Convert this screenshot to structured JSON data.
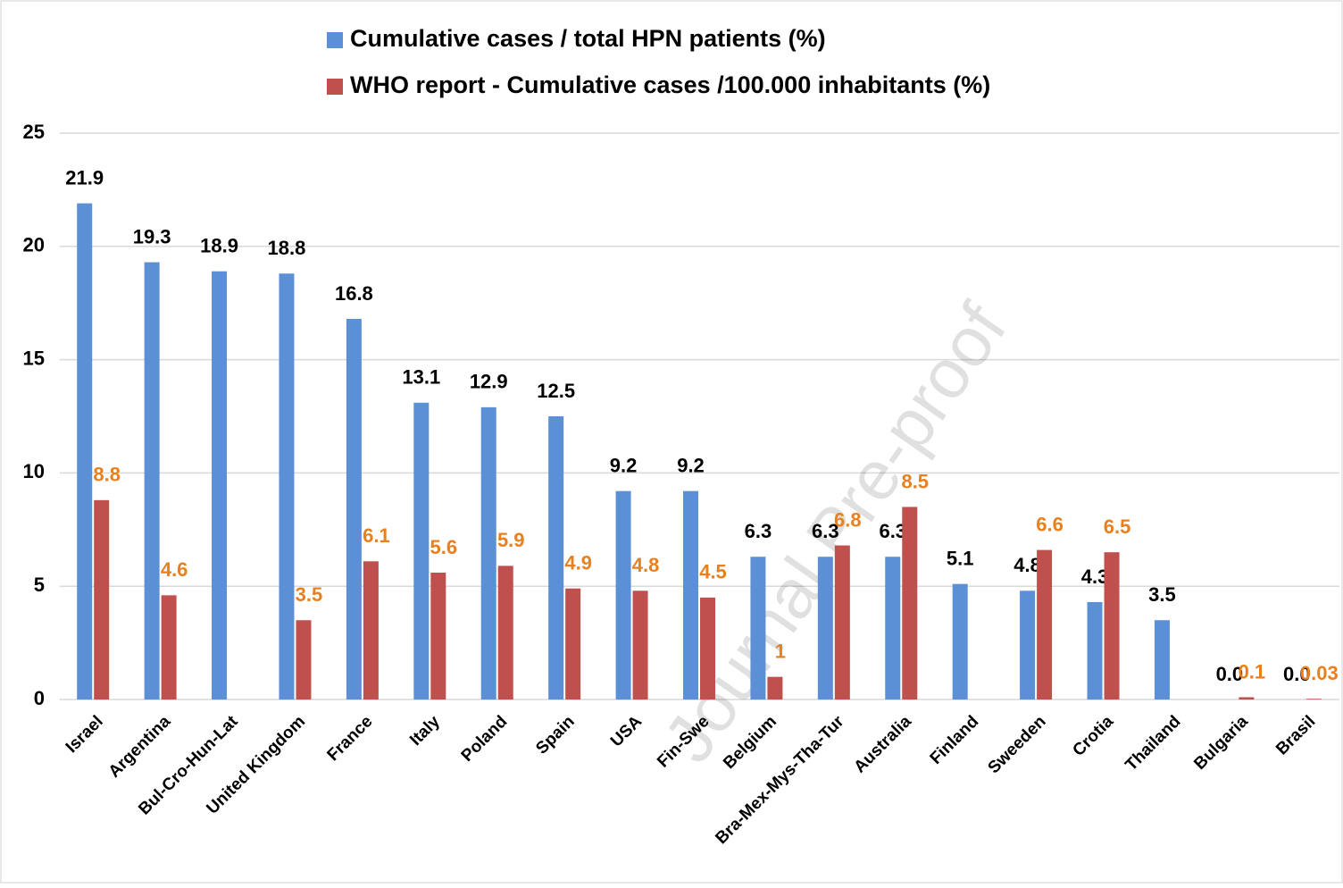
{
  "chart_data": {
    "type": "bar",
    "watermark": "Journal Pre-proof",
    "categories": [
      "Israel",
      "Argentina",
      "Bul-Cro-Hun-Lat",
      "United Kingdom",
      "France",
      "Italy",
      "Poland",
      "Spain",
      "USA",
      "Fin-Swe",
      "Belgium",
      "Bra-Mex-Mys-Tha-Tur",
      "Australia",
      "Finland",
      "Sweeden",
      "Crotia",
      "Thailand",
      "Bulgaria",
      "Brasil"
    ],
    "series": [
      {
        "name": "Cumulative cases / total HPN patients (%)",
        "color": "#5b8fd6",
        "label_color": "#000000",
        "values": [
          21.9,
          19.3,
          18.9,
          18.8,
          16.8,
          13.1,
          12.9,
          12.5,
          9.2,
          9.2,
          6.3,
          6.3,
          6.3,
          5.1,
          4.8,
          4.3,
          3.5,
          0,
          0
        ],
        "value_labels": [
          "21.9",
          "19.3",
          "18.9",
          "18.8",
          "16.8",
          "13.1",
          "12.9",
          "12.5",
          "9.2",
          "9.2",
          "6.3",
          "6.3",
          "6.3",
          "5.1",
          "4.8",
          "4.3",
          "3.5",
          "0.0",
          "0.0"
        ]
      },
      {
        "name": "WHO report  - Cumulative cases /100.000 inhabitants (%)",
        "color": "#c0504d",
        "label_color": "#e8801f",
        "values": [
          8.8,
          4.6,
          null,
          3.5,
          6.1,
          5.6,
          5.9,
          4.9,
          4.8,
          4.5,
          1,
          6.8,
          8.5,
          null,
          6.6,
          6.5,
          null,
          0.1,
          0.03
        ]
      }
    ],
    "ylim": [
      0,
      25
    ],
    "yticks": [
      0,
      5,
      10,
      15,
      20,
      25
    ],
    "grid": true
  }
}
